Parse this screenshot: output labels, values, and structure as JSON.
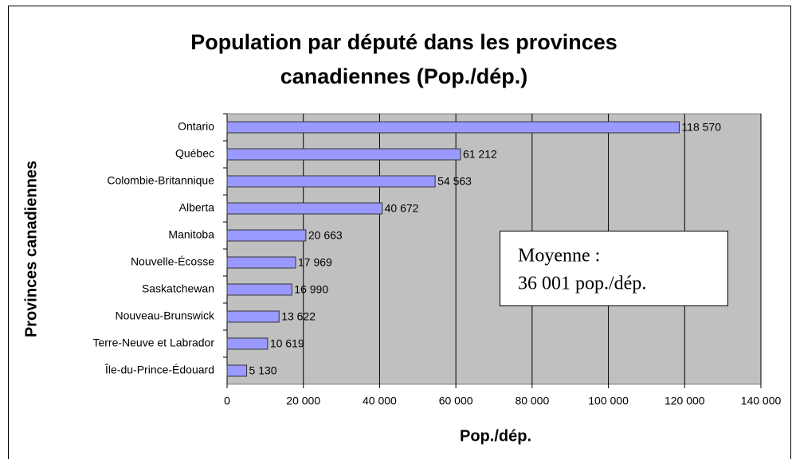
{
  "chart_data": {
    "type": "bar",
    "orientation": "horizontal",
    "title": [
      "Population par député dans les provinces",
      "canadiennes (Pop./dép.)"
    ],
    "x_label": "Pop./dép.",
    "y_label": "Provinces canadiennes",
    "categories": [
      "Ontario",
      "Québec",
      "Colombie-Britannique",
      "Alberta",
      "Manitoba",
      "Nouvelle-Écosse",
      "Saskatchewan",
      "Nouveau-Brunswick",
      "Terre-Neuve et Labrador",
      "Île-du-Prince-Édouard"
    ],
    "values": [
      118570,
      61212,
      54563,
      40672,
      20663,
      17969,
      16990,
      13622,
      10619,
      5130
    ],
    "value_labels": [
      "118 570",
      "61 212",
      "54 563",
      "40 672",
      "20 663",
      "17 969",
      "16 990",
      "13 622",
      "10 619",
      "5 130"
    ],
    "color": "#9999ff",
    "xlim": [
      0,
      140000
    ],
    "xticks": [
      0,
      {
        "value": 20000,
        "label": "20 000"
      },
      {
        "value": 40000,
        "label": "40 000"
      },
      {
        "value": 60000,
        "label": "60 000"
      },
      {
        "value": 80000,
        "label": "80 000"
      },
      {
        "value": 100000,
        "label": "100 000"
      },
      {
        "value": 120000,
        "label": "120 000"
      },
      {
        "value": 140000,
        "label": "140 000"
      }
    ],
    "grid": true,
    "annotation": [
      "Moyenne :",
      "36 001 pop./dép."
    ]
  }
}
